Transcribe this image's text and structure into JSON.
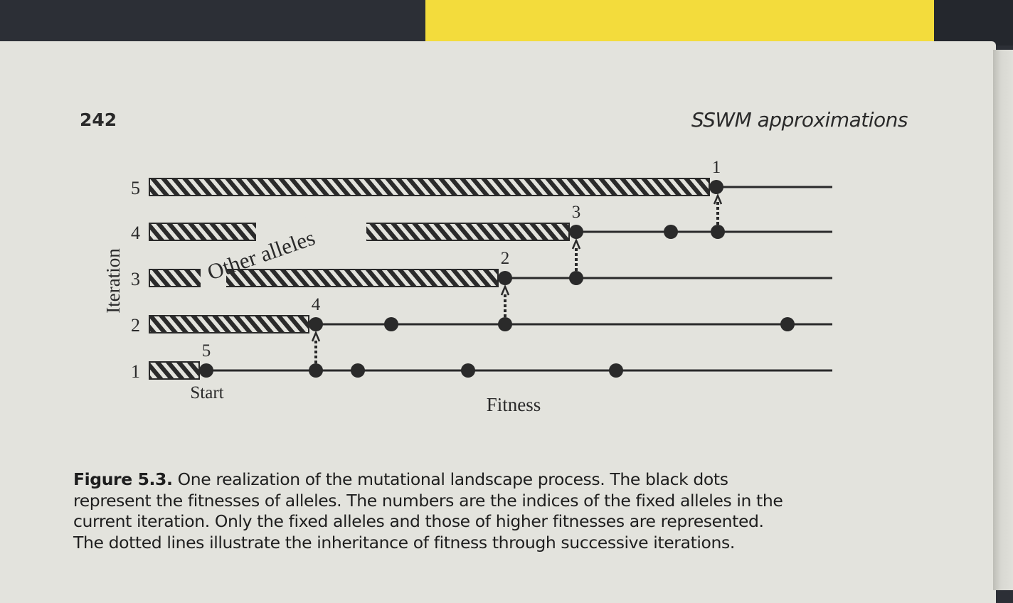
{
  "header": {
    "page_number": "242",
    "running_head": "SSWM approximations"
  },
  "figure": {
    "y_axis_label": "Iteration",
    "x_axis_label": "Fitness",
    "iteration_ticks": [
      "1",
      "2",
      "3",
      "4",
      "5"
    ],
    "start_label": "Start",
    "annotation": "Other alleles",
    "fixed_allele_labels": [
      {
        "iteration": 1,
        "label": "5"
      },
      {
        "iteration": 2,
        "label": "4"
      },
      {
        "iteration": 3,
        "label": "2"
      },
      {
        "iteration": 4,
        "label": "3"
      },
      {
        "iteration": 5,
        "label": "1"
      }
    ],
    "colors": {
      "ink": "#2a2a2a",
      "paper": "#e3e3dd"
    }
  },
  "caption": {
    "label": "Figure 5.3.",
    "lines": [
      " One realization of the mutational landscape process.  The black dots",
      "represent the fitnesses of alleles. The numbers are the indices of the fixed alleles in the",
      "current iteration. Only the fixed alleles and those of higher fitnesses are represented.",
      "The dotted lines illustrate the inheritance of fitness through successive iterations."
    ]
  },
  "background": {
    "sticky_note_color": "#f3dc3c"
  }
}
